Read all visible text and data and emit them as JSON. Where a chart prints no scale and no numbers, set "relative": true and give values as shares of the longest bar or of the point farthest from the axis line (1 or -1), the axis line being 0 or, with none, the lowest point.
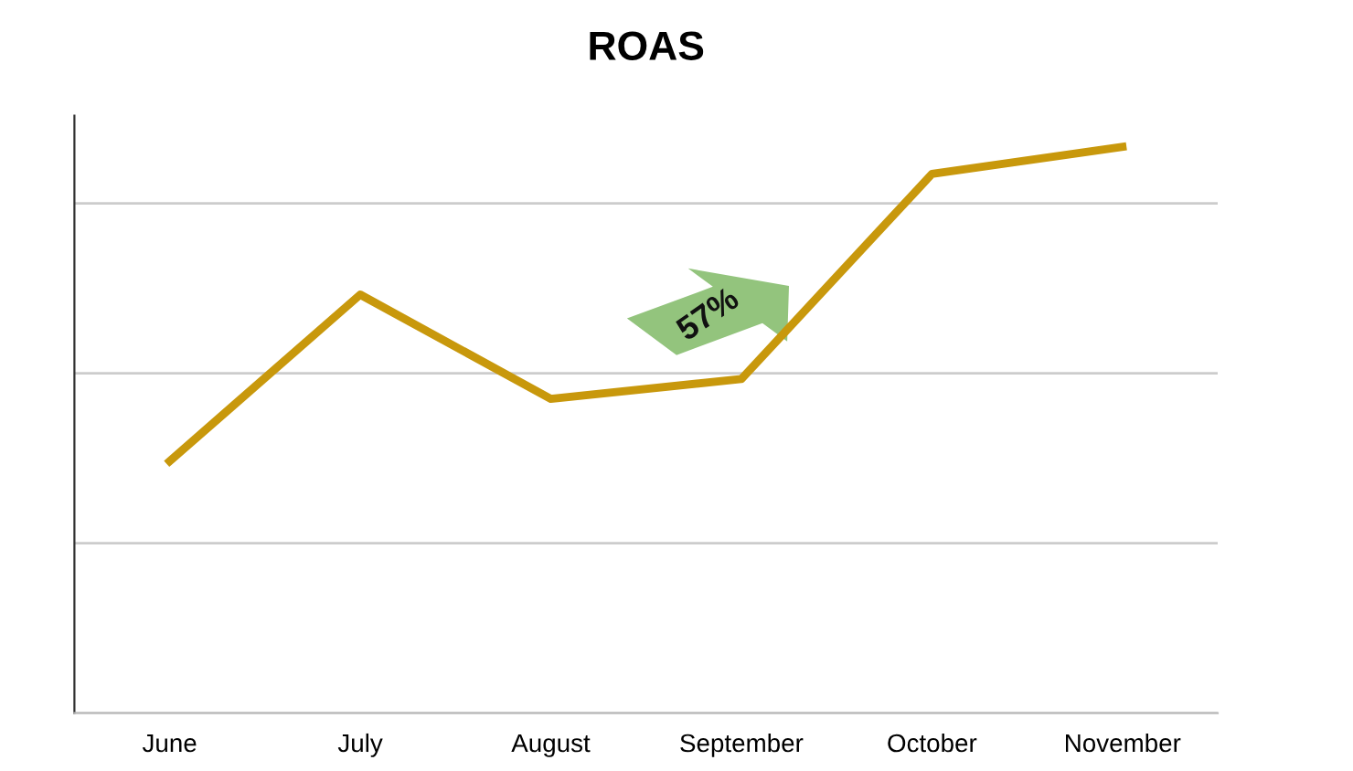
{
  "chart_data": {
    "type": "line",
    "title": "ROAS",
    "relative": true,
    "grid": "y",
    "categories": [
      "June",
      "July",
      "August",
      "September",
      "October",
      "November"
    ],
    "series": [
      {
        "color": "#c8980c",
        "values": [
          0.445,
          0.739,
          0.555,
          0.59,
          0.952,
          1.0
        ]
      }
    ],
    "annotations": [
      "57%"
    ],
    "marker": "none",
    "line_style": "solid",
    "legend": false
  }
}
